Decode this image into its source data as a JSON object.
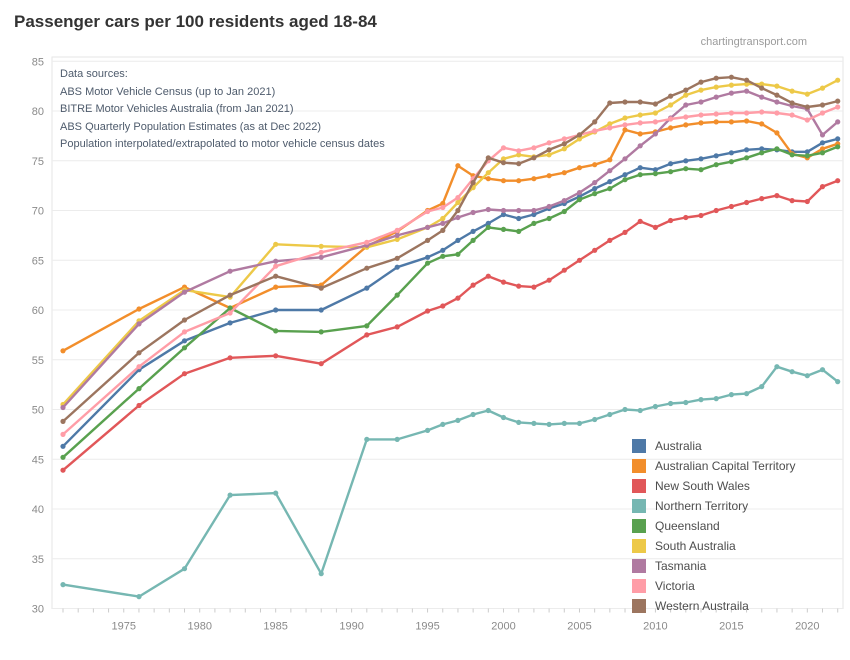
{
  "header": {
    "title": "Passenger cars per 100 residents aged 18-84",
    "watermark": "chartingtransport.com"
  },
  "annotation": {
    "lines": [
      "Data sources:",
      "ABS Motor Vehicle Census (up to Jan 2021)",
      "BITRE Motor Vehicles Australia (from Jan 2021)",
      "ABS Quarterly Population Estimates (as at Dec 2022)",
      "Population interpolated/extrapolated to motor vehicle census dates"
    ]
  },
  "chart_data": {
    "type": "line",
    "title": "Passenger cars per 100 residents aged 18-84",
    "xlabel": "",
    "ylabel": "",
    "ylim": [
      30,
      85
    ],
    "xlim": [
      1971,
      2022
    ],
    "grid": "horizontal",
    "legend_position": "inside bottom-right",
    "marker": "circle",
    "yticks": [
      30,
      35,
      40,
      45,
      50,
      55,
      60,
      65,
      70,
      75,
      80,
      85
    ],
    "xticks": [
      1975,
      1980,
      1985,
      1990,
      1995,
      2000,
      2005,
      2010,
      2015,
      2020
    ],
    "x": [
      1971,
      1976,
      1979,
      1982,
      1985,
      1988,
      1991,
      1993,
      1995,
      1996,
      1997,
      1998,
      1999,
      2000,
      2001,
      2002,
      2003,
      2004,
      2005,
      2006,
      2007,
      2008,
      2009,
      2010,
      2011,
      2012,
      2013,
      2014,
      2015,
      2016,
      2017,
      2018,
      2019,
      2020,
      2021,
      2022
    ],
    "series": [
      {
        "name": "Australia",
        "color": "#4e79a7",
        "values": [
          46.3,
          54.0,
          56.9,
          58.7,
          60.0,
          60.0,
          62.2,
          64.3,
          65.3,
          66.0,
          67.0,
          67.9,
          68.7,
          69.6,
          69.2,
          69.6,
          70.2,
          70.7,
          71.4,
          72.2,
          72.9,
          73.6,
          74.3,
          74.1,
          74.7,
          75.0,
          75.2,
          75.5,
          75.8,
          76.1,
          76.2,
          76.1,
          75.9,
          75.9,
          76.8,
          77.2
        ]
      },
      {
        "name": "Australian Capital Territory",
        "color": "#f28e2b",
        "values": [
          55.9,
          60.1,
          62.3,
          60.2,
          62.3,
          62.5,
          66.4,
          67.9,
          70.0,
          70.7,
          74.5,
          73.5,
          73.2,
          73.0,
          73.0,
          73.2,
          73.5,
          73.8,
          74.3,
          74.6,
          75.1,
          78.1,
          77.7,
          77.9,
          78.3,
          78.6,
          78.8,
          78.9,
          78.9,
          79.0,
          78.7,
          77.8,
          75.7,
          75.3,
          76.2,
          76.7
        ]
      },
      {
        "name": "New South Wales",
        "color": "#e15759",
        "values": [
          43.9,
          50.4,
          53.6,
          55.2,
          55.4,
          54.6,
          57.5,
          58.3,
          59.9,
          60.4,
          61.2,
          62.5,
          63.4,
          62.8,
          62.4,
          62.3,
          63.0,
          64.0,
          65.0,
          66.0,
          67.0,
          67.8,
          68.9,
          68.3,
          69.0,
          69.3,
          69.5,
          70.0,
          70.4,
          70.8,
          71.2,
          71.5,
          71.0,
          70.9,
          72.4,
          73.0
        ]
      },
      {
        "name": "Northern Territory",
        "color": "#76b7b2",
        "values": [
          32.4,
          31.2,
          34.0,
          41.4,
          41.6,
          33.5,
          47.0,
          47.0,
          47.9,
          48.5,
          48.9,
          49.5,
          49.9,
          49.2,
          48.7,
          48.6,
          48.5,
          48.6,
          48.6,
          49.0,
          49.5,
          50.0,
          49.9,
          50.3,
          50.6,
          50.7,
          51.0,
          51.1,
          51.5,
          51.6,
          52.3,
          54.3,
          53.8,
          53.4,
          54.0,
          52.8
        ]
      },
      {
        "name": "Queensland",
        "color": "#59a14f",
        "values": [
          45.2,
          52.1,
          56.2,
          60.2,
          57.9,
          57.8,
          58.4,
          61.5,
          64.7,
          65.4,
          65.6,
          67.0,
          68.3,
          68.1,
          67.9,
          68.7,
          69.2,
          69.9,
          71.1,
          71.7,
          72.2,
          73.1,
          73.6,
          73.7,
          73.9,
          74.2,
          74.1,
          74.6,
          74.9,
          75.3,
          75.8,
          76.2,
          75.6,
          75.5,
          75.8,
          76.4
        ]
      },
      {
        "name": "South Australia",
        "color": "#edc948",
        "values": [
          50.5,
          58.9,
          62.0,
          61.3,
          66.6,
          66.4,
          66.3,
          67.1,
          68.3,
          69.2,
          70.8,
          72.3,
          73.8,
          75.2,
          75.6,
          75.4,
          75.6,
          76.2,
          77.2,
          77.9,
          78.7,
          79.3,
          79.6,
          79.8,
          80.6,
          81.6,
          82.1,
          82.4,
          82.6,
          82.7,
          82.7,
          82.5,
          82.0,
          81.7,
          82.3,
          83.1
        ]
      },
      {
        "name": "Tasmania",
        "color": "#b07aa1",
        "values": [
          50.2,
          58.6,
          61.8,
          63.9,
          64.9,
          65.3,
          66.5,
          67.5,
          68.3,
          68.7,
          69.3,
          69.8,
          70.1,
          70.0,
          70.0,
          70.0,
          70.4,
          71.0,
          71.8,
          72.8,
          74.0,
          75.2,
          76.5,
          77.7,
          79.3,
          80.6,
          80.9,
          81.4,
          81.8,
          82.0,
          81.4,
          80.9,
          80.5,
          80.2,
          77.6,
          78.9
        ]
      },
      {
        "name": "Victoria",
        "color": "#ff9da7",
        "values": [
          47.5,
          54.3,
          57.8,
          59.7,
          64.4,
          65.8,
          66.8,
          68.0,
          69.9,
          70.3,
          71.3,
          73.2,
          75.0,
          76.3,
          76.0,
          76.3,
          76.8,
          77.2,
          77.6,
          78.0,
          78.3,
          78.6,
          78.8,
          78.9,
          79.2,
          79.4,
          79.6,
          79.7,
          79.8,
          79.8,
          79.9,
          79.8,
          79.6,
          79.1,
          79.8,
          80.4
        ]
      },
      {
        "name": "Western Austraila",
        "color": "#9c755f",
        "values": [
          48.8,
          55.7,
          59.0,
          61.5,
          63.4,
          62.2,
          64.2,
          65.2,
          67.0,
          68.0,
          70.0,
          72.8,
          75.3,
          74.8,
          74.7,
          75.3,
          76.1,
          76.7,
          77.6,
          78.9,
          80.8,
          80.9,
          80.9,
          80.7,
          81.5,
          82.1,
          82.9,
          83.3,
          83.4,
          83.1,
          82.3,
          81.6,
          80.8,
          80.4,
          80.6,
          81.0
        ]
      }
    ]
  },
  "style": {
    "grid_color": "#ececec",
    "border_color": "#e6e6e6",
    "tick_color": "#cbcbcb",
    "axis_label_color": "#8a8a8a"
  }
}
